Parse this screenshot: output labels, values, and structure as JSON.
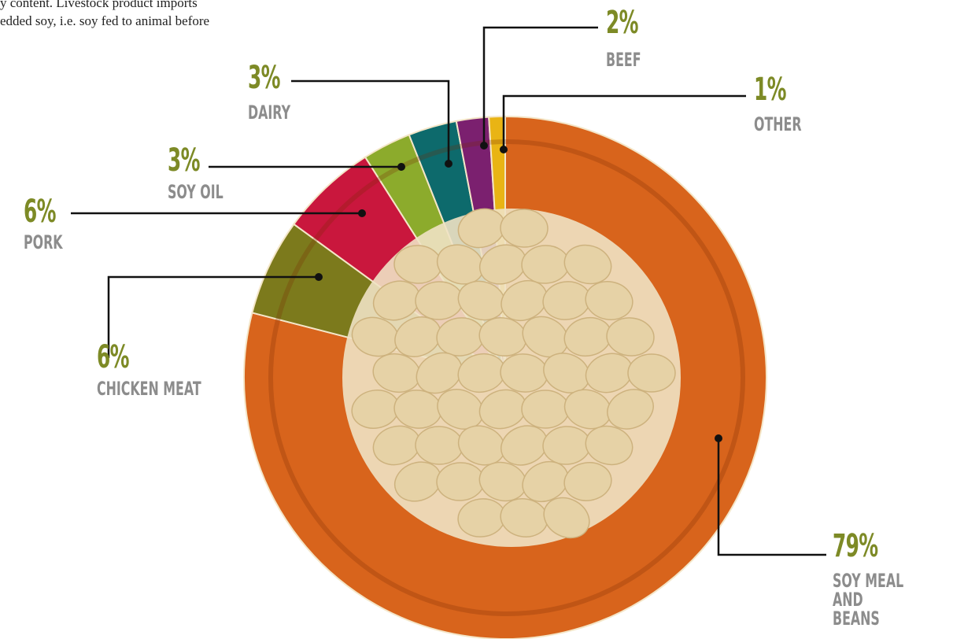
{
  "notes": [
    "y content. Livestock product imports",
    "edded soy, i.e. soy fed to animal before"
  ],
  "chart_data": {
    "type": "pie",
    "categories": [
      "SOY MEAL AND BEANS",
      "CHICKEN MEAT",
      "PORK",
      "SOY OIL",
      "DAIRY",
      "BEEF",
      "OTHER"
    ],
    "values": [
      79,
      6,
      6,
      3,
      3,
      2,
      1
    ],
    "value_labels": [
      "79%",
      "6%",
      "6%",
      "3%",
      "3%",
      "2%",
      "1%"
    ],
    "colors": [
      "#d8641c",
      "#7c7a1c",
      "#c9173d",
      "#8cab2c",
      "#0d6a6c",
      "#7b206f",
      "#e9b414"
    ]
  }
}
